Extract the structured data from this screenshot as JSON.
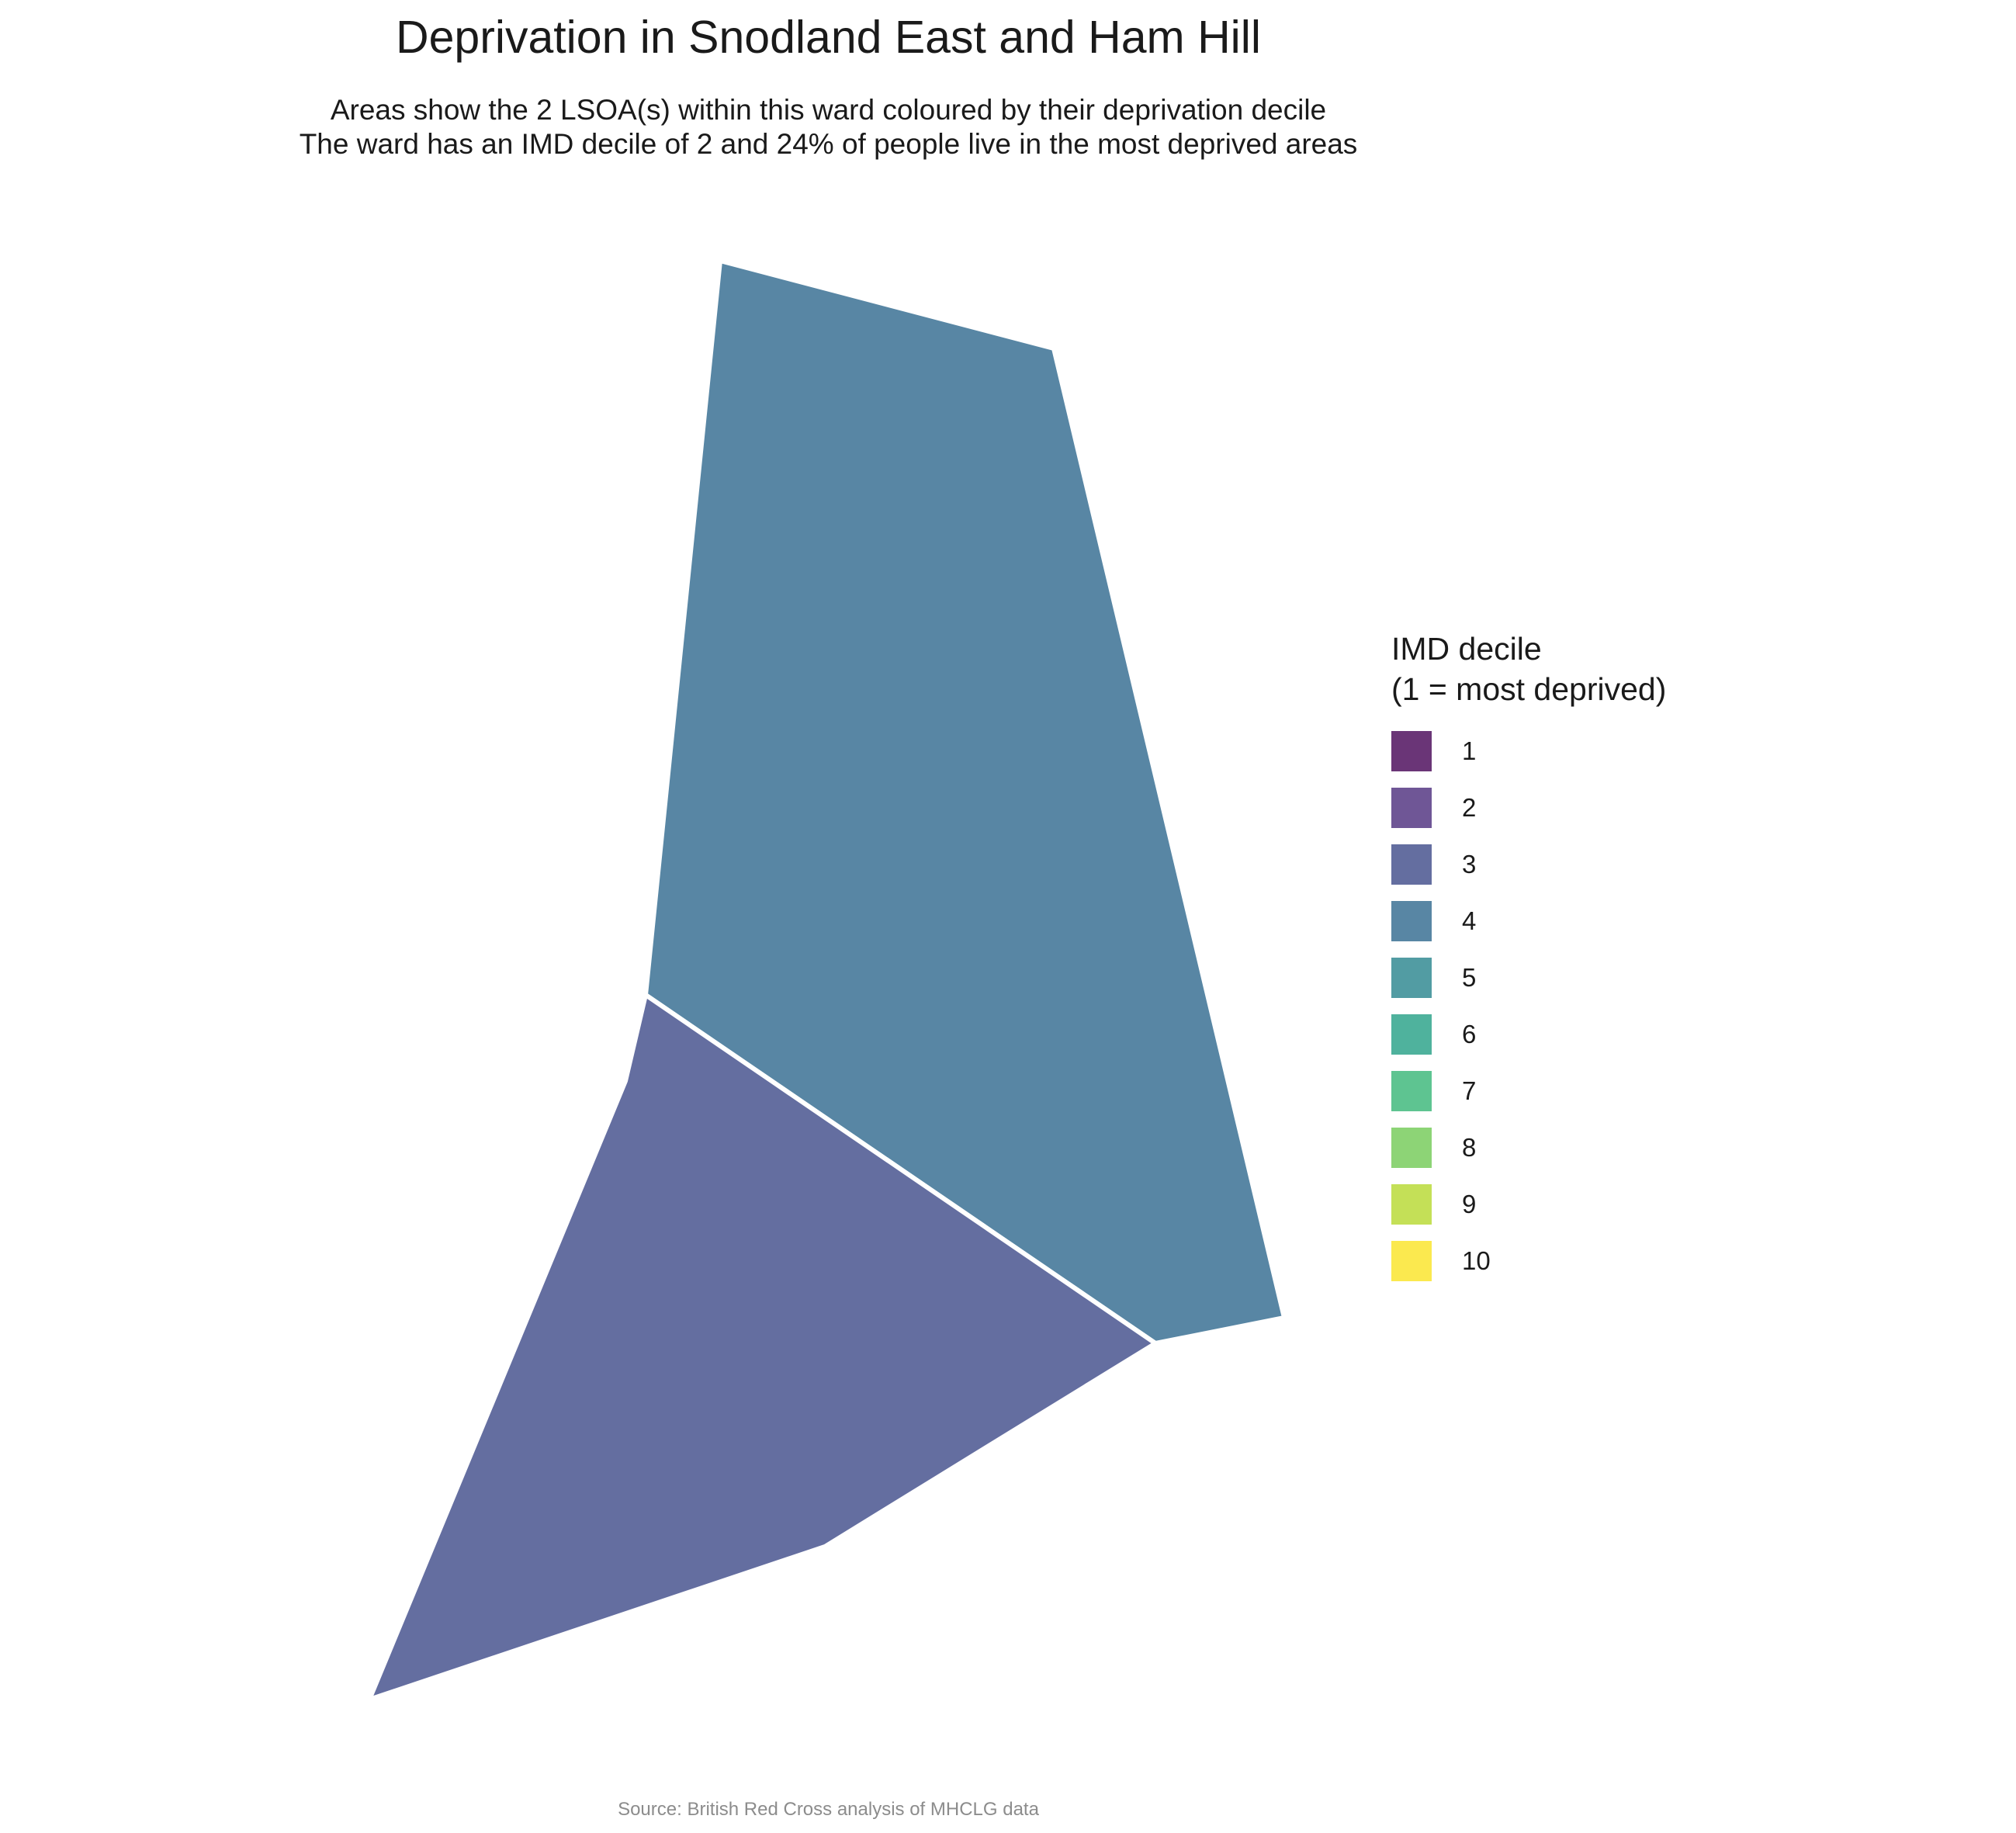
{
  "title": "Deprivation in Snodland East and Ham Hill",
  "subtitle": {
    "line1": "Areas show the 2 LSOA(s) within this ward coloured by their deprivation decile",
    "line2": "The ward has an IMD decile of 2 and 24% of people live in the most deprived areas"
  },
  "map": {
    "areas": [
      {
        "id": "lsoa-north",
        "decile": 4
      },
      {
        "id": "lsoa-south",
        "decile": 3
      }
    ],
    "boundary_color": "#ffffff"
  },
  "legend": {
    "title_line1": "IMD decile",
    "title_line2": "(1 = most deprived)",
    "items": [
      {
        "label": "1",
        "color": "#6a3577"
      },
      {
        "label": "2",
        "color": "#6f5696"
      },
      {
        "label": "3",
        "color": "#646ea0"
      },
      {
        "label": "4",
        "color": "#5886a4"
      },
      {
        "label": "5",
        "color": "#529ca3"
      },
      {
        "label": "6",
        "color": "#4fb29d"
      },
      {
        "label": "7",
        "color": "#5ec491"
      },
      {
        "label": "8",
        "color": "#8dd476"
      },
      {
        "label": "9",
        "color": "#c4e057"
      },
      {
        "label": "10",
        "color": "#fbe94f"
      }
    ]
  },
  "caption": "Source: British Red Cross analysis of MHCLG data"
}
